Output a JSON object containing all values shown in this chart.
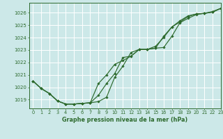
{
  "title": "Graphe pression niveau de la mer (hPa)",
  "bg_color": "#cce8e8",
  "grid_color": "#ffffff",
  "line_color": "#2d6a2d",
  "ylim": [
    1018.3,
    1026.8
  ],
  "xlim": [
    -0.5,
    23
  ],
  "yticks": [
    1019,
    1020,
    1021,
    1022,
    1023,
    1024,
    1025,
    1026
  ],
  "xticks": [
    0,
    1,
    2,
    3,
    4,
    5,
    6,
    7,
    8,
    9,
    10,
    11,
    12,
    13,
    14,
    15,
    16,
    17,
    18,
    19,
    20,
    21,
    22,
    23
  ],
  "series": [
    [
      1020.5,
      1019.9,
      1019.5,
      1018.9,
      1018.65,
      1018.65,
      1018.7,
      1018.75,
      1018.85,
      1019.2,
      1020.8,
      1021.7,
      1022.8,
      1023.05,
      1023.05,
      1023.15,
      1024.1,
      1024.85,
      1025.35,
      1025.75,
      1025.9,
      1025.95,
      1026.1,
      1026.35
    ],
    [
      1020.5,
      1019.9,
      1019.5,
      1018.9,
      1018.65,
      1018.65,
      1018.7,
      1018.75,
      1020.3,
      1021.0,
      1021.85,
      1022.15,
      1022.5,
      1023.05,
      1023.05,
      1023.15,
      1023.2,
      1024.1,
      1025.2,
      1025.55,
      1025.85,
      1025.95,
      1026.05,
      1026.35
    ],
    [
      1020.5,
      1019.9,
      1019.5,
      1018.9,
      1018.65,
      1018.65,
      1018.7,
      1018.75,
      1019.35,
      1020.3,
      1021.1,
      1022.4,
      1022.5,
      1023.05,
      1023.05,
      1023.3,
      1024.0,
      1024.85,
      1025.25,
      1025.7,
      1025.9,
      1025.95,
      1026.05,
      1026.35
    ]
  ]
}
